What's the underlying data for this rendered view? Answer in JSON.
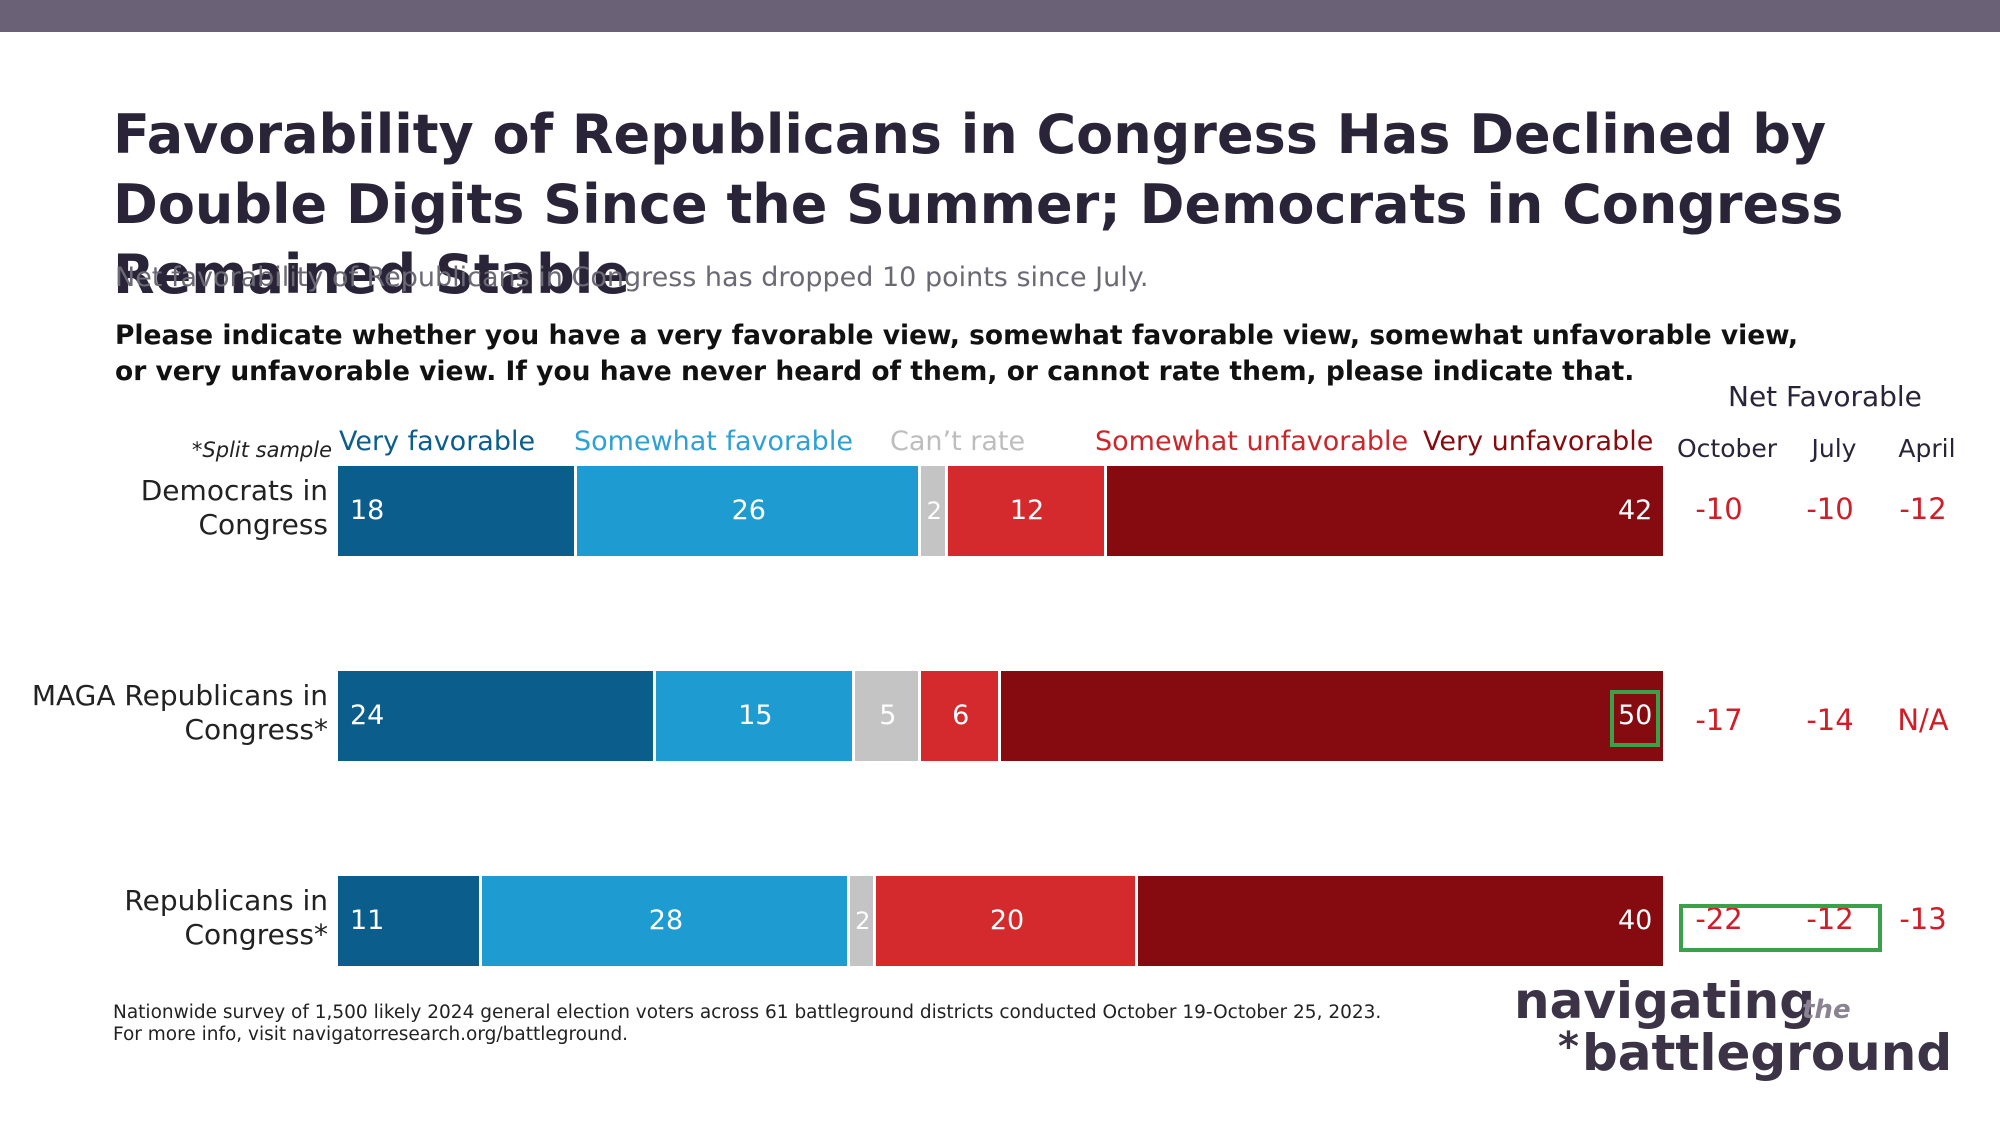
{
  "header": {
    "title": "Favorability of Republicans in Congress Has Declined by Double Digits Since the Summer; Democrats in Congress Remained Stable",
    "subtitle": "Net favorability of Republicans in Congress has dropped 10 points since July.",
    "question": "Please indicate whether you have a very favorable view, somewhat favorable view, somewhat unfavorable view, or very unfavorable view. If you have never heard of them, or cannot rate them, please indicate that.",
    "split_note": "*Split sample"
  },
  "colors": {
    "very_favorable": "#0b5e8c",
    "somewhat_favorable": "#1e9bd0",
    "cant_rate": "#c4c4c4",
    "somewhat_unfavorable": "#d42a2e",
    "very_unfavorable": "#860b10",
    "net_text": "#d01e28",
    "highlight": "#3aa14a"
  },
  "net_favorable": {
    "heading": "Net Favorable",
    "columns": [
      "October",
      "July",
      "April"
    ]
  },
  "chart_data": {
    "type": "bar",
    "orientation": "horizontal-stacked",
    "categories": [
      "Democrats in Congress",
      "MAGA Republicans in Congress*",
      "Republicans in Congress*"
    ],
    "series": [
      {
        "name": "Very favorable",
        "values": [
          18,
          24,
          11
        ]
      },
      {
        "name": "Somewhat favorable",
        "values": [
          26,
          15,
          28
        ]
      },
      {
        "name": "Can’t rate",
        "values": [
          2,
          5,
          2
        ]
      },
      {
        "name": "Somewhat unfavorable",
        "values": [
          12,
          6,
          20
        ]
      },
      {
        "name": "Very unfavorable",
        "values": [
          42,
          50,
          40
        ]
      }
    ],
    "net_favorable": {
      "October": [
        "-10",
        "-17",
        "-22"
      ],
      "July": [
        "-10",
        "-14",
        "-12"
      ],
      "April": [
        "-12",
        "N/A",
        "-13"
      ]
    },
    "highlights": [
      "MAGA Republicans in Congress* — Very unfavorable 50",
      "Republicans in Congress* — October -22 and July -12"
    ]
  },
  "footer": {
    "line1": "Nationwide survey of 1,500 likely 2024 general election voters across 61 battleground districts conducted October 19-October 25, 2023.",
    "line2": "For more info, visit navigatorresearch.org/battleground."
  },
  "logo": {
    "word1": "navigating",
    "word2": "the",
    "word3": "battleground",
    "star": "*"
  }
}
